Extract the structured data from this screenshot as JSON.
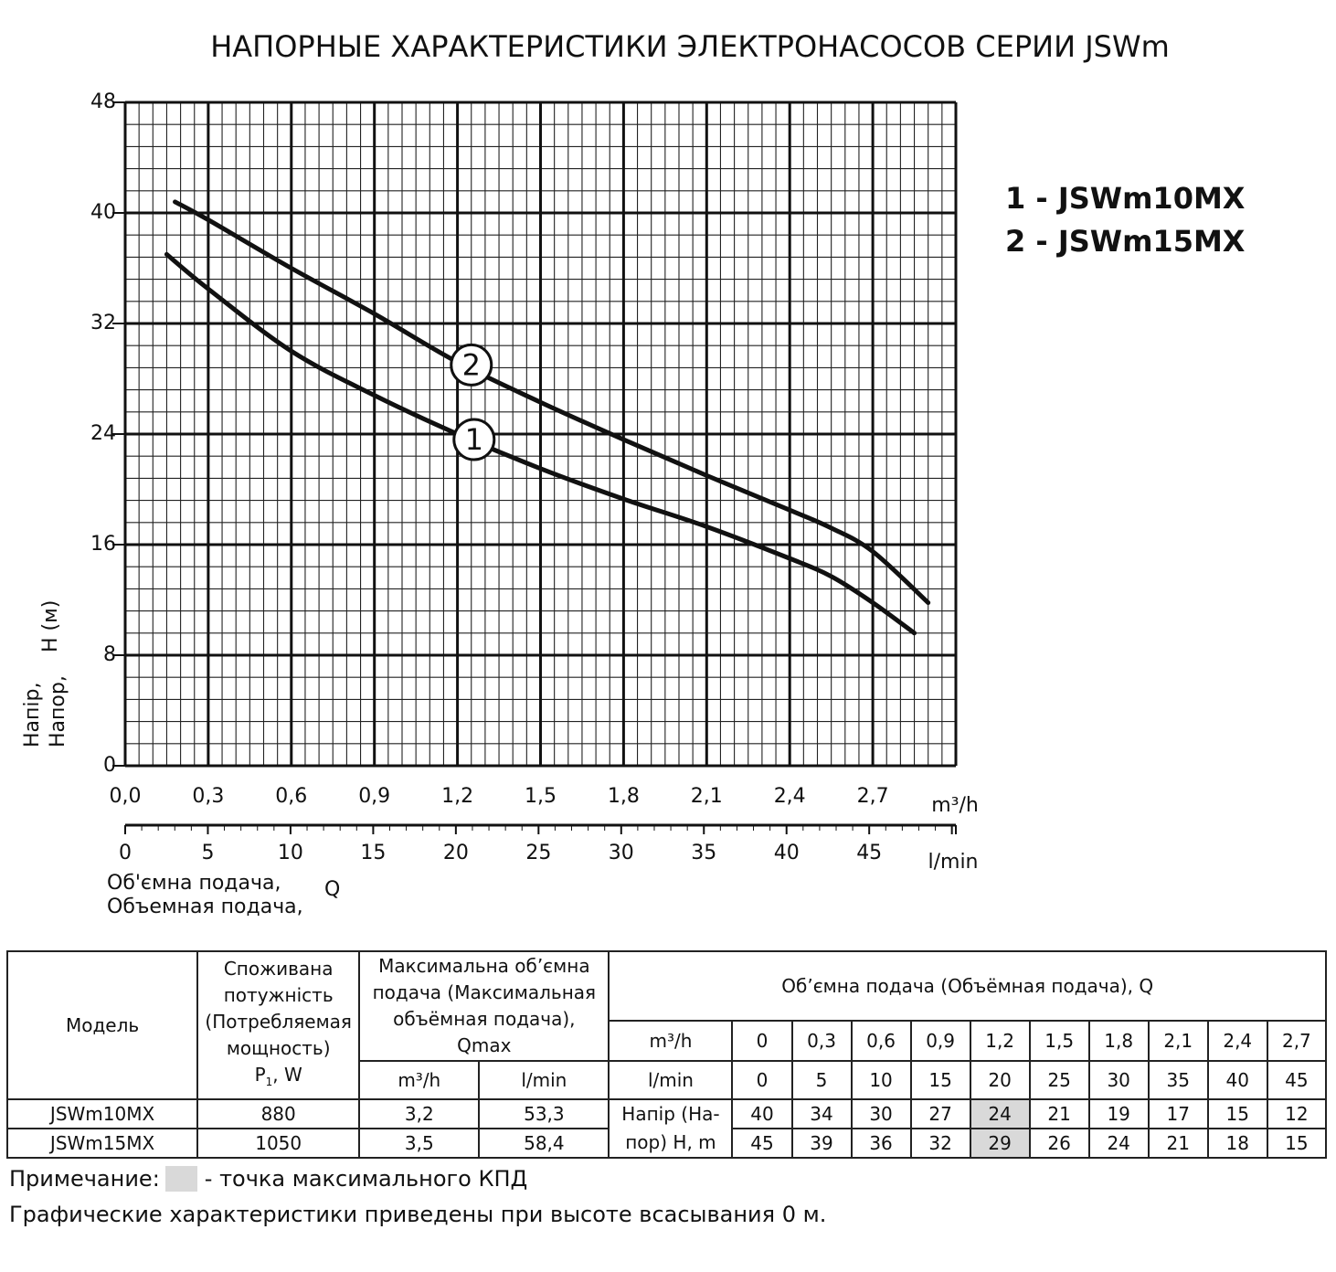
{
  "chart_data": {
    "type": "line",
    "title": "НАПОРНЫЕ ХАРАКТЕРИСТИКИ ЭЛЕКТРОНАСОСОВ СЕРИИ JSWm",
    "xlabel_unit_1": "m³/h",
    "xlabel_unit_2": "l/min",
    "xlabel": [
      "Об'ємна подача,",
      "Объемная подача,"
    ],
    "xlabel_symbol": "Q",
    "ylabel": [
      "Напір,",
      "Напор,"
    ],
    "ylabel_unit": "H (м)",
    "xlim": [
      0,
      3.0
    ],
    "ylim": [
      0,
      48
    ],
    "x_ticks_m3h": [
      "0,0",
      "0,3",
      "0,6",
      "0,9",
      "1,2",
      "1,5",
      "1,8",
      "2,1",
      "2,4",
      "2,7"
    ],
    "x_ticks_lmin": [
      "0",
      "5",
      "10",
      "15",
      "20",
      "25",
      "30",
      "35",
      "40",
      "45"
    ],
    "y_ticks": [
      "0",
      "8",
      "16",
      "24",
      "32",
      "40",
      "48"
    ],
    "legend": [
      "1 - JSWm10MX",
      "2 - JSWm15MX"
    ],
    "legend_position": "top-right",
    "series": [
      {
        "name": "1",
        "x": [
          0.15,
          0.3,
          0.6,
          0.9,
          1.2,
          1.5,
          1.8,
          2.1,
          2.4,
          2.55,
          2.7,
          2.85
        ],
        "y": [
          37,
          34.5,
          30,
          26.8,
          24,
          21.5,
          19.3,
          17.3,
          15,
          13.7,
          11.8,
          9.6
        ]
      },
      {
        "name": "2",
        "x": [
          0.18,
          0.3,
          0.6,
          0.9,
          1.2,
          1.5,
          1.8,
          2.1,
          2.4,
          2.55,
          2.7,
          2.9
        ],
        "y": [
          40.8,
          39.5,
          36,
          32.7,
          29.2,
          26.3,
          23.6,
          21,
          18.5,
          17.2,
          15.5,
          11.8
        ]
      }
    ],
    "curve_labels": [
      {
        "text": "2",
        "x": 1.25,
        "y": 29
      },
      {
        "text": "1",
        "x": 1.26,
        "y": 23.6
      }
    ]
  },
  "table": {
    "col_model": "Модель",
    "col_power": [
      "Споживана",
      "потужність",
      "(Потребляемая",
      "мощность)"
    ],
    "col_power_symbol": "P",
    "col_power_sub": "1",
    "col_power_unit": ", W",
    "col_qmax": [
      "Максимальна об’ємна",
      "подача (Максимальная",
      "объёмная подача),",
      "Qmax"
    ],
    "col_qmax_unit1": "m³/h",
    "col_qmax_unit2": "l/min",
    "col_flow": "Об’ємна подача (Объёмная подача), Q",
    "flow_unit1": "m³/h",
    "flow_unit2": "l/min",
    "flow_m3h": [
      "0",
      "0,3",
      "0,6",
      "0,9",
      "1,2",
      "1,5",
      "1,8",
      "2,1",
      "2,4",
      "2,7"
    ],
    "flow_lmin": [
      "0",
      "5",
      "10",
      "15",
      "20",
      "25",
      "30",
      "35",
      "40",
      "45"
    ],
    "head_label_1": "Напір (На-",
    "head_label_2": "пор) H, m",
    "rows": [
      {
        "model": "JSWm10MX",
        "power": "880",
        "qmax_m3h": "3,2",
        "qmax_lmin": "53,3",
        "heads": [
          "40",
          "34",
          "30",
          "27",
          "24",
          "21",
          "19",
          "17",
          "15",
          "12"
        ]
      },
      {
        "model": "JSWm15MX",
        "power": "1050",
        "qmax_m3h": "3,5",
        "qmax_lmin": "58,4",
        "heads": [
          "45",
          "39",
          "36",
          "32",
          "29",
          "26",
          "24",
          "21",
          "18",
          "15"
        ]
      }
    ],
    "highlight_index": 4,
    "highlight_color": "#d9d9d9"
  },
  "notes": {
    "note_label": "Примечание:",
    "note_text": "- точка максимального КПД",
    "line2": "Графические характеристики приведены при высоте всасывания 0 м."
  }
}
